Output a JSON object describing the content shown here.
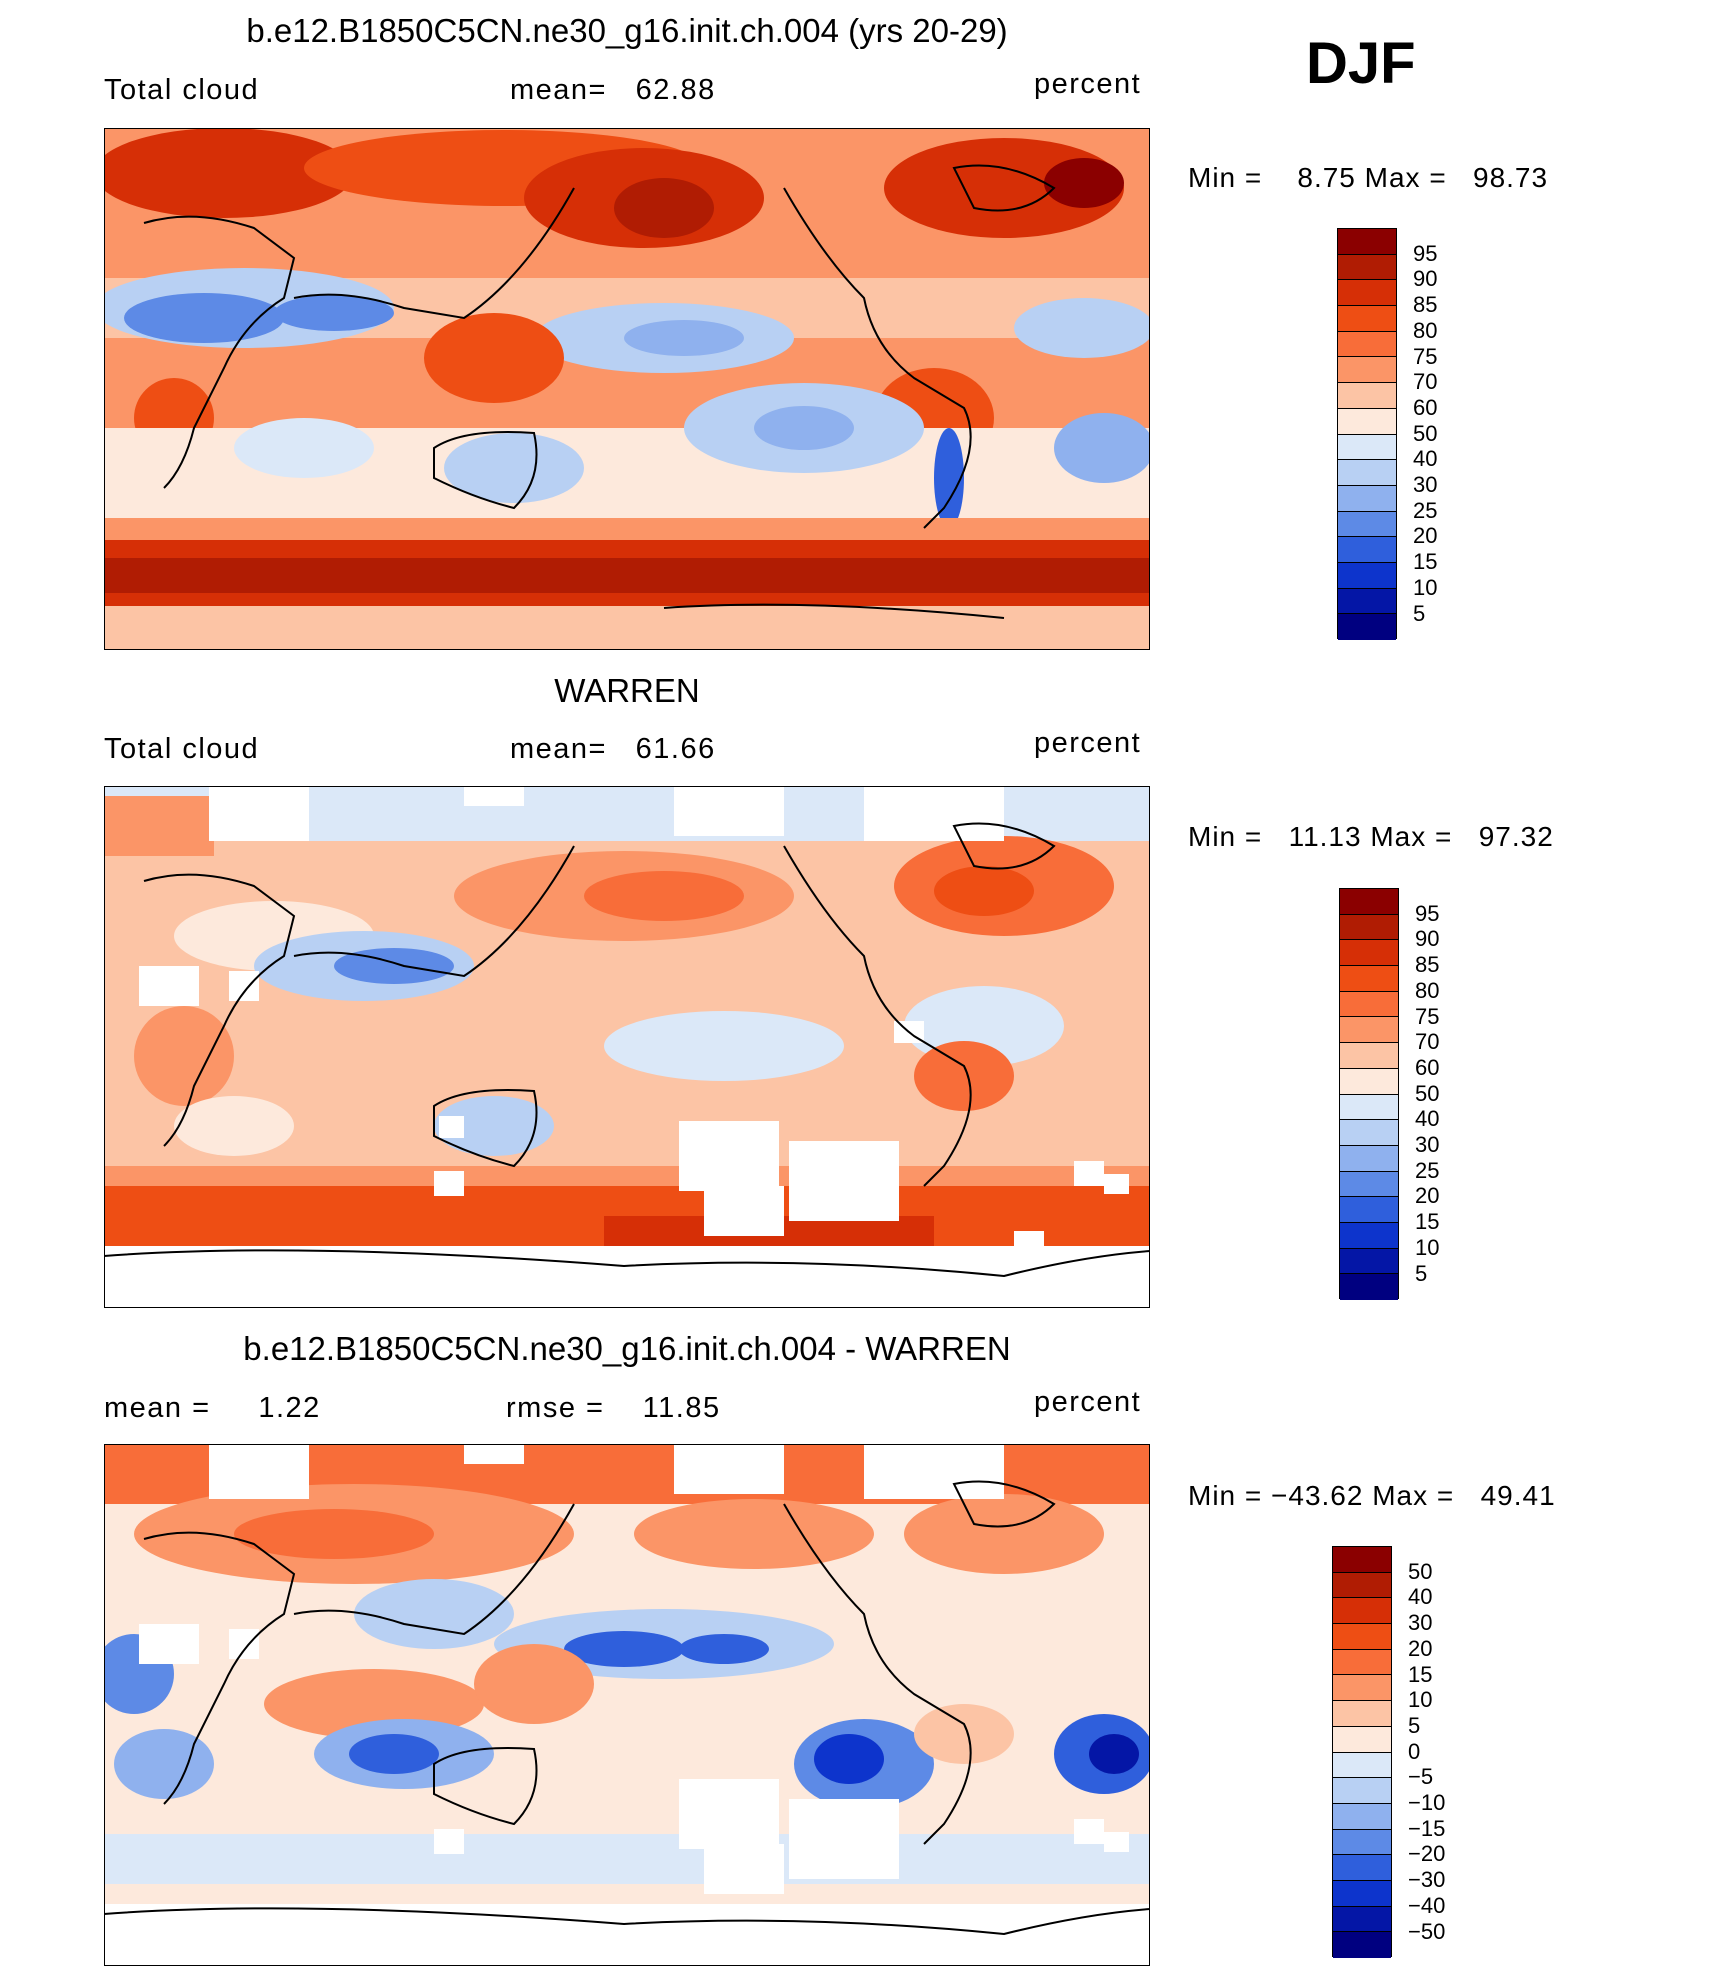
{
  "season": "DJF",
  "panels": [
    {
      "title": "b.e12.B1850C5CN.ne30_g16.init.ch.004 (yrs 20-29)",
      "left_label": "Total cloud",
      "center_label": "mean=   62.88",
      "right_label": "percent",
      "stats": "Min =    8.75 Max =   98.73"
    },
    {
      "title": "WARREN",
      "left_label": "Total cloud",
      "center_label": "mean=   61.66",
      "right_label": "percent",
      "stats": "Min =   11.13 Max =   97.32"
    },
    {
      "title": "b.e12.B1850C5CN.ne30_g16.init.ch.004 - WARREN",
      "left_label": "mean =     1.22",
      "center_label": "rmse =    11.85",
      "right_label": "percent",
      "stats": "Min = −43.62 Max =   49.41"
    }
  ],
  "colorbars": {
    "abs_labels": [
      "95",
      "90",
      "85",
      "80",
      "75",
      "70",
      "60",
      "50",
      "40",
      "30",
      "25",
      "20",
      "15",
      "10",
      "5"
    ],
    "diff_labels": [
      "50",
      "40",
      "30",
      "20",
      "15",
      "10",
      "5",
      "0",
      "−5",
      "−10",
      "−15",
      "−20",
      "−30",
      "−40",
      "−50"
    ],
    "colors": [
      "#8b0000",
      "#b01c03",
      "#d62f06",
      "#ee4e14",
      "#f86d39",
      "#fb9567",
      "#fcc4a5",
      "#fde9dc",
      "#dbe8f8",
      "#b8d0f3",
      "#8fb1ee",
      "#5d8ae6",
      "#2f5fdc",
      "#0d34cc",
      "#0416a6",
      "#000080"
    ]
  },
  "chart_data": {
    "type": "heatmap",
    "variable": "Total cloud",
    "units": "percent",
    "season": "DJF",
    "maps": [
      {
        "name": "b.e12.B1850C5CN.ne30_g16.init.ch.004 (yrs 20-29)",
        "mean": 62.88,
        "min": 8.75,
        "max": 98.73
      },
      {
        "name": "WARREN",
        "mean": 61.66,
        "min": 11.13,
        "max": 97.32
      },
      {
        "name": "b.e12.B1850C5CN.ne30_g16.init.ch.004 - WARREN",
        "mean": 1.22,
        "rmse": 11.85,
        "min": -43.62,
        "max": 49.41
      }
    ],
    "abs_levels": [
      5,
      10,
      15,
      20,
      25,
      30,
      40,
      50,
      60,
      70,
      75,
      80,
      85,
      90,
      95
    ],
    "diff_levels": [
      -50,
      -40,
      -30,
      -20,
      -15,
      -10,
      -5,
      0,
      5,
      10,
      15,
      20,
      30,
      40,
      50
    ]
  }
}
